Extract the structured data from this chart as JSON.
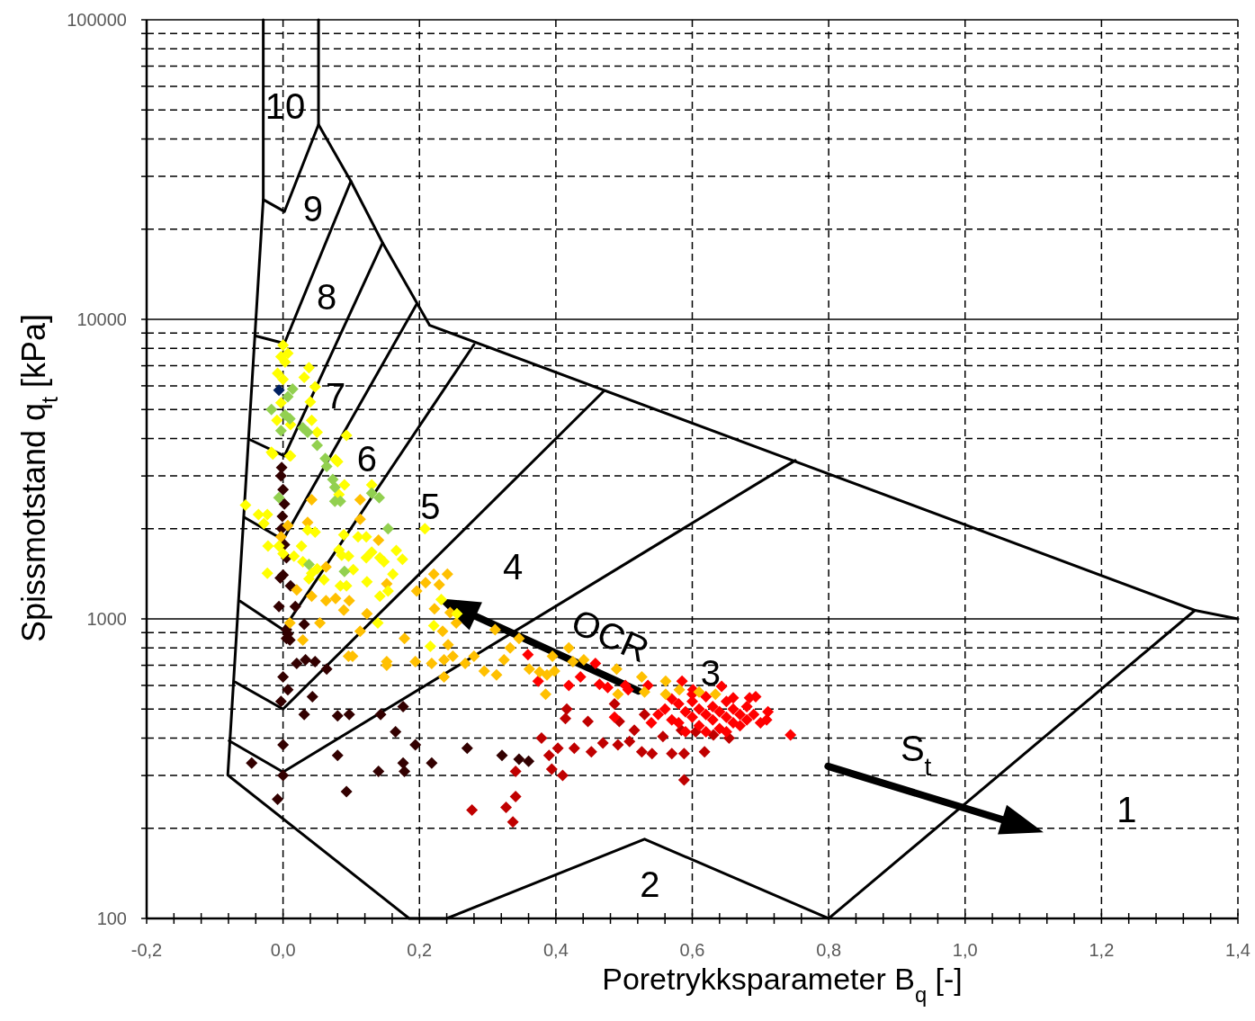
{
  "chart_data": {
    "type": "scatter",
    "xlabel": "Poretrykksparameter B$_{q}$ [-]",
    "ylabel": "Spissmotstand q$_{t}$ [kPa]",
    "xlim": [
      -0.2,
      1.4
    ],
    "ylim": [
      100,
      100000
    ],
    "log": "y",
    "grid": true,
    "marker": "diamond",
    "xticks": [
      {
        "value": -0.2,
        "label": "-0,2"
      },
      {
        "value": -0.16,
        "label": null
      },
      {
        "value": -0.12,
        "label": null
      },
      {
        "value": -0.08,
        "label": null
      },
      {
        "value": -0.04,
        "label": null
      },
      {
        "value": 0,
        "label": "0,0"
      },
      {
        "value": 0.04,
        "label": null
      },
      {
        "value": 0.08,
        "label": null
      },
      {
        "value": 0.12,
        "label": null
      },
      {
        "value": 0.16,
        "label": null
      },
      {
        "value": 0.2,
        "label": "0,2"
      },
      {
        "value": 0.24,
        "label": null
      },
      {
        "value": 0.28,
        "label": null
      },
      {
        "value": 0.32,
        "label": null
      },
      {
        "value": 0.36,
        "label": null
      },
      {
        "value": 0.4,
        "label": "0,4"
      },
      {
        "value": 0.44,
        "label": null
      },
      {
        "value": 0.48,
        "label": null
      },
      {
        "value": 0.52,
        "label": null
      },
      {
        "value": 0.56,
        "label": null
      },
      {
        "value": 0.6,
        "label": "0,6"
      },
      {
        "value": 0.64,
        "label": null
      },
      {
        "value": 0.68,
        "label": null
      },
      {
        "value": 0.72,
        "label": null
      },
      {
        "value": 0.76,
        "label": null
      },
      {
        "value": 0.8,
        "label": "0,8"
      },
      {
        "value": 0.84,
        "label": null
      },
      {
        "value": 0.88,
        "label": null
      },
      {
        "value": 0.92,
        "label": null
      },
      {
        "value": 0.96,
        "label": null
      },
      {
        "value": 1.0,
        "label": "1,0"
      },
      {
        "value": 1.04,
        "label": null
      },
      {
        "value": 1.08,
        "label": null
      },
      {
        "value": 1.12,
        "label": null
      },
      {
        "value": 1.16,
        "label": null
      },
      {
        "value": 1.2,
        "label": "1,2"
      },
      {
        "value": 1.24,
        "label": null
      },
      {
        "value": 1.28,
        "label": null
      },
      {
        "value": 1.32,
        "label": null
      },
      {
        "value": 1.36,
        "label": null
      },
      {
        "value": 1.4,
        "label": "1,4"
      }
    ],
    "yticks": [
      100,
      {
        "value": 200,
        "label": null
      },
      {
        "value": 300,
        "label": null
      },
      {
        "value": 400,
        "label": null
      },
      {
        "value": 500,
        "label": null
      },
      {
        "value": 600,
        "label": null
      },
      {
        "value": 700,
        "label": null
      },
      {
        "value": 800,
        "label": null
      },
      {
        "value": 900,
        "label": null
      },
      1000,
      {
        "value": 2000,
        "label": null
      },
      {
        "value": 3000,
        "label": null
      },
      {
        "value": 4000,
        "label": null
      },
      {
        "value": 5000,
        "label": null
      },
      {
        "value": 6000,
        "label": null
      },
      {
        "value": 7000,
        "label": null
      },
      {
        "value": 8000,
        "label": null
      },
      {
        "value": 9000,
        "label": null
      },
      10000,
      {
        "value": 20000,
        "label": null
      },
      {
        "value": 30000,
        "label": null
      },
      {
        "value": 40000,
        "label": null
      },
      {
        "value": 50000,
        "label": null
      },
      {
        "value": 60000,
        "label": null
      },
      {
        "value": 70000,
        "label": null
      },
      {
        "value": 80000,
        "label": null
      },
      {
        "value": 90000,
        "label": null
      },
      100000
    ],
    "annotations": [
      "10",
      "9",
      "8",
      "7",
      "6",
      "5",
      "4",
      "3",
      "2",
      "1",
      "OCR",
      "S$_{t}$"
    ],
    "series": [
      {
        "type": "line",
        "color": "#000000",
        "marker": "none",
        "x": [
          -0.029,
          -0.029,
          -0.081,
          0.185,
          0.24,
          0.53,
          0.8,
          1.337,
          1.4
        ],
        "values": [
          100000,
          25100,
          301,
          100,
          100,
          184,
          100,
          1068,
          1000
        ]
      },
      {
        "type": "line",
        "color": "#000000",
        "marker": "none",
        "x": [
          1.337,
          0.215,
          0.146,
          0.0995,
          0.052,
          0.052
        ],
        "values": [
          1068,
          9550,
          18000,
          28900,
          44700,
          100000
        ]
      },
      {
        "type": "line",
        "color": "#000000",
        "marker": "none",
        "x": [
          -0.029,
          0.002,
          0.052
        ],
        "values": [
          25100,
          22900,
          44700
        ]
      },
      {
        "type": "line",
        "color": "#000000",
        "marker": "none",
        "x": [
          -0.041,
          0.002,
          0.0995
        ],
        "values": [
          8810,
          8310,
          28900
        ]
      },
      {
        "type": "line",
        "color": "#000000",
        "marker": "none",
        "x": [
          -0.05,
          0.002,
          0.146
        ],
        "values": [
          3980,
          3500,
          18000
        ]
      },
      {
        "type": "line",
        "color": "#000000",
        "marker": "none",
        "x": [
          -0.057,
          0.0,
          0.196
        ],
        "values": [
          2185,
          1838,
          11250
        ]
      },
      {
        "type": "line",
        "color": "#000000",
        "marker": "none",
        "x": [
          -0.063,
          0.0,
          0.28
        ],
        "values": [
          1146,
          920,
          8240
        ]
      },
      {
        "type": "line",
        "color": "#000000",
        "marker": "none",
        "x": [
          -0.07,
          0.0,
          0.47
        ],
        "values": [
          615,
          500,
          5750
        ]
      },
      {
        "type": "line",
        "color": "#000000",
        "marker": "none",
        "x": [
          -0.079,
          0.0,
          0.751
        ],
        "values": [
          392,
          308,
          3380
        ]
      },
      {
        "color": "#330000",
        "x": [
          -0.002,
          0.0,
          0.002,
          -0.001,
          -0.002,
          0.002,
          0.005,
          0.0,
          -0.003,
          0.005,
          0.011,
          -0.006,
          0.018,
          0.007,
          0.005,
          0.01,
          -0.004,
          0.031,
          0.033,
          0.02,
          0.047,
          0.064,
          0.0,
          0.007,
          0.043,
          -0.003,
          0.031,
          0.08,
          0.097,
          0.143,
          0.176,
          0.165,
          0.0,
          -0.046,
          0.0,
          0.08,
          0.14,
          0.176,
          0.178,
          0.194,
          0.218,
          0.093,
          -0.008,
          0.321,
          0.346,
          0.36,
          0.27
        ],
        "values": [
          3200,
          2700,
          2420,
          2200,
          2000,
          1770,
          1600,
          1400,
          3000,
          920,
          1290,
          1100,
          1100,
          890,
          860,
          850,
          1370,
          960,
          730,
          710,
          720,
          680,
          640,
          580,
          550,
          530,
          480,
          475,
          480,
          480,
          510,
          420,
          380,
          330,
          300,
          350,
          310,
          330,
          310,
          380,
          330,
          265,
          250,
          350,
          340,
          335,
          370
        ]
      },
      {
        "color": "#c00000",
        "x": [
          0.379,
          0.39,
          0.403,
          0.394,
          0.41,
          0.427,
          0.447,
          0.452,
          0.469,
          0.491,
          0.508,
          0.515,
          0.486,
          0.493,
          0.526,
          0.541,
          0.557,
          0.57,
          0.588,
          0.618,
          0.588,
          0.53,
          0.584,
          0.605,
          0.631,
          0.654,
          0.341,
          0.327,
          0.337,
          0.341,
          0.416,
          0.414,
          0.277
        ],
        "values": [
          400,
          350,
          370,
          315,
          300,
          370,
          455,
          360,
          385,
          380,
          390,
          425,
          520,
          455,
          360,
          355,
          405,
          355,
          355,
          360,
          290,
          480,
          425,
          420,
          410,
          400,
          310,
          235,
          210,
          255,
          500,
          465,
          230
        ]
      },
      {
        "color": "#ff0000",
        "x": [
          0.359,
          0.374,
          0.419,
          0.436,
          0.458,
          0.464,
          0.476,
          0.502,
          0.506,
          0.535,
          0.585,
          0.601,
          0.643,
          0.66,
          0.684,
          0.693,
          0.711,
          0.709,
          0.744,
          0.486,
          0.55,
          0.56,
          0.57,
          0.58,
          0.58,
          0.59,
          0.6,
          0.6,
          0.61,
          0.61,
          0.62,
          0.62,
          0.63,
          0.63,
          0.64,
          0.64,
          0.65,
          0.65,
          0.66,
          0.66,
          0.67,
          0.67,
          0.68,
          0.68,
          0.69,
          0.7,
          0.57,
          0.59,
          0.62,
          0.65,
          0.54,
          0.6
        ],
        "values": [
          760,
          620,
          600,
          640,
          710,
          605,
          590,
          600,
          580,
          600,
          620,
          580,
          595,
          545,
          545,
          550,
          490,
          460,
          410,
          470,
          480,
          500,
          460,
          520,
          450,
          490,
          470,
          530,
          440,
          500,
          480,
          550,
          460,
          510,
          430,
          490,
          470,
          530,
          450,
          500,
          480,
          440,
          510,
          460,
          480,
          450,
          540,
          420,
          420,
          420,
          450,
          560
        ]
      },
      {
        "color": "#ffc000",
        "x": [
          0.042,
          0.113,
          0.036,
          0.007,
          -0.003,
          0.113,
          0.14,
          0.063,
          0.152,
          0.02,
          0.042,
          0.063,
          0.077,
          0.089,
          0.097,
          0.054,
          0.029,
          0.01,
          0.123,
          0.113,
          0.096,
          0.102,
          0.152,
          0.194,
          0.178,
          0.221,
          0.241,
          0.209,
          0.229,
          0.196,
          0.222,
          0.245,
          0.254,
          0.311,
          0.234,
          0.242,
          0.218,
          0.236,
          0.249,
          0.267,
          0.28,
          0.295,
          0.313,
          0.236,
          0.152,
          0.346,
          0.333,
          0.324,
          0.361,
          0.376,
          0.387,
          0.398,
          0.385,
          0.395,
          0.419,
          0.425,
          0.441,
          0.489,
          0.491,
          0.526,
          0.53,
          0.561,
          0.561,
          0.581,
          0.61,
          0.634
        ],
        "values": [
          2500,
          2500,
          2100,
          2050,
          1880,
          2150,
          1830,
          1490,
          1310,
          1250,
          1190,
          1150,
          1170,
          1070,
          1150,
          970,
          850,
          970,
          1040,
          910,
          750,
          750,
          720,
          720,
          860,
          1410,
          1410,
          1320,
          1300,
          1240,
          1080,
          1050,
          970,
          920,
          910,
          820,
          710,
          730,
          750,
          710,
          750,
          670,
          650,
          640,
          700,
          860,
          800,
          730,
          680,
          665,
          650,
          670,
          560,
          750,
          800,
          720,
          730,
          680,
          560,
          640,
          570,
          620,
          560,
          580,
          570,
          560
        ]
      },
      {
        "color": "#ffff00",
        "x": [
          0.0,
          0.007,
          -0.003,
          0.003,
          -0.008,
          0.0,
          0.038,
          0.031,
          0.047,
          -0.003,
          0.04,
          -0.009,
          0.011,
          0.042,
          0.05,
          0.093,
          -0.015,
          0.011,
          0.077,
          -0.017,
          0.01,
          -0.055,
          -0.036,
          -0.023,
          -0.028,
          0.09,
          0.08,
          0.082,
          0.13,
          -0.022,
          -0.006,
          0.0,
          0.016,
          0.027,
          0.036,
          0.047,
          0.029,
          0.042,
          0.05,
          0.089,
          0.082,
          0.086,
          0.096,
          0.103,
          0.11,
          0.122,
          0.122,
          0.13,
          0.142,
          0.148,
          0.166,
          0.175,
          0.161,
          0.123,
          0.084,
          0.093,
          0.142,
          0.154,
          -0.023,
          0.038,
          0.06,
          0.208,
          0.139,
          0.232,
          0.255,
          0.221,
          0.216
        ],
        "values": [
          8200,
          7700,
          7500,
          7200,
          6600,
          6300,
          6900,
          6400,
          5950,
          5270,
          5300,
          4600,
          4450,
          4600,
          4200,
          4100,
          3550,
          3500,
          3400,
          3600,
          3500,
          2400,
          2230,
          2230,
          2080,
          2800,
          3350,
          2600,
          2800,
          1750,
          1750,
          1650,
          1620,
          1750,
          1980,
          1950,
          1550,
          1420,
          1470,
          1910,
          1700,
          1630,
          1620,
          1460,
          1880,
          1880,
          1600,
          1670,
          1600,
          1550,
          1690,
          1580,
          1410,
          1330,
          1290,
          1290,
          1190,
          1240,
          1420,
          1360,
          1350,
          2000,
          970,
          1160,
          1040,
          950,
          810
        ]
      },
      {
        "color": "#92d050",
        "x": [
          0.014,
          0.007,
          -0.017,
          0.003,
          0.01,
          -0.003,
          0.029,
          0.036,
          0.05,
          0.062,
          0.064,
          0.073,
          0.076,
          0.076,
          0.084,
          0.13,
          0.141,
          -0.006,
          0.154,
          0.038,
          0.09
        ],
        "values": [
          5850,
          5520,
          5000,
          4800,
          4660,
          4250,
          4350,
          4200,
          3800,
          3430,
          3230,
          2920,
          2750,
          2470,
          2470,
          2630,
          2540,
          2540,
          2000,
          1520,
          1440
        ]
      },
      {
        "color": "#002060",
        "x": [
          -0.006
        ],
        "values": [
          5800
        ]
      }
    ]
  }
}
